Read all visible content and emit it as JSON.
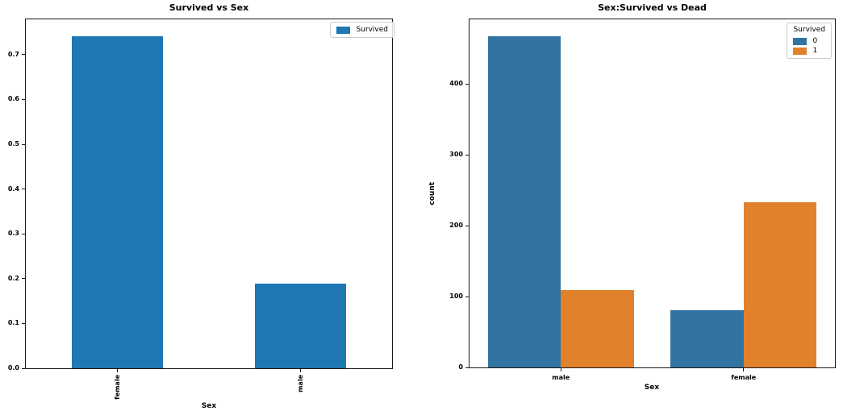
{
  "figure": {
    "background": "#ffffff",
    "spine_color": "#1a1a1a"
  },
  "chart_data": [
    {
      "type": "bar",
      "title": "Survived vs Sex",
      "xlabel": "Sex",
      "ylabel": "",
      "categories": [
        "female",
        "male"
      ],
      "values": [
        0.742,
        0.189
      ],
      "bar_color": "#1f77b4",
      "legend": {
        "position": "upper right",
        "entries": [
          {
            "label": "Survived",
            "color": "#1f77b4"
          }
        ]
      },
      "ylim": [
        0,
        0.779
      ],
      "yticks": [
        0.0,
        0.1,
        0.2,
        0.3,
        0.4,
        0.5,
        0.6,
        0.7
      ],
      "ytick_labels": [
        "0.0",
        "0.1",
        "0.2",
        "0.3",
        "0.4",
        "0.5",
        "0.6",
        "0.7"
      ],
      "xtick_rotation": 90,
      "grid": false
    },
    {
      "type": "bar",
      "title": "Sex:Survived vs Dead",
      "xlabel": "Sex",
      "ylabel": "count",
      "categories": [
        "male",
        "female"
      ],
      "series": [
        {
          "name": "0",
          "color": "#3274a1",
          "values": [
            468,
            81
          ]
        },
        {
          "name": "1",
          "color": "#e1812c",
          "values": [
            109,
            233
          ]
        }
      ],
      "legend": {
        "position": "upper right",
        "title": "Survived"
      },
      "ylim": [
        0,
        491.4
      ],
      "yticks": [
        0,
        100,
        200,
        300,
        400
      ],
      "ytick_labels": [
        "0",
        "100",
        "200",
        "300",
        "400"
      ],
      "xtick_rotation": 0,
      "grid": false
    }
  ]
}
